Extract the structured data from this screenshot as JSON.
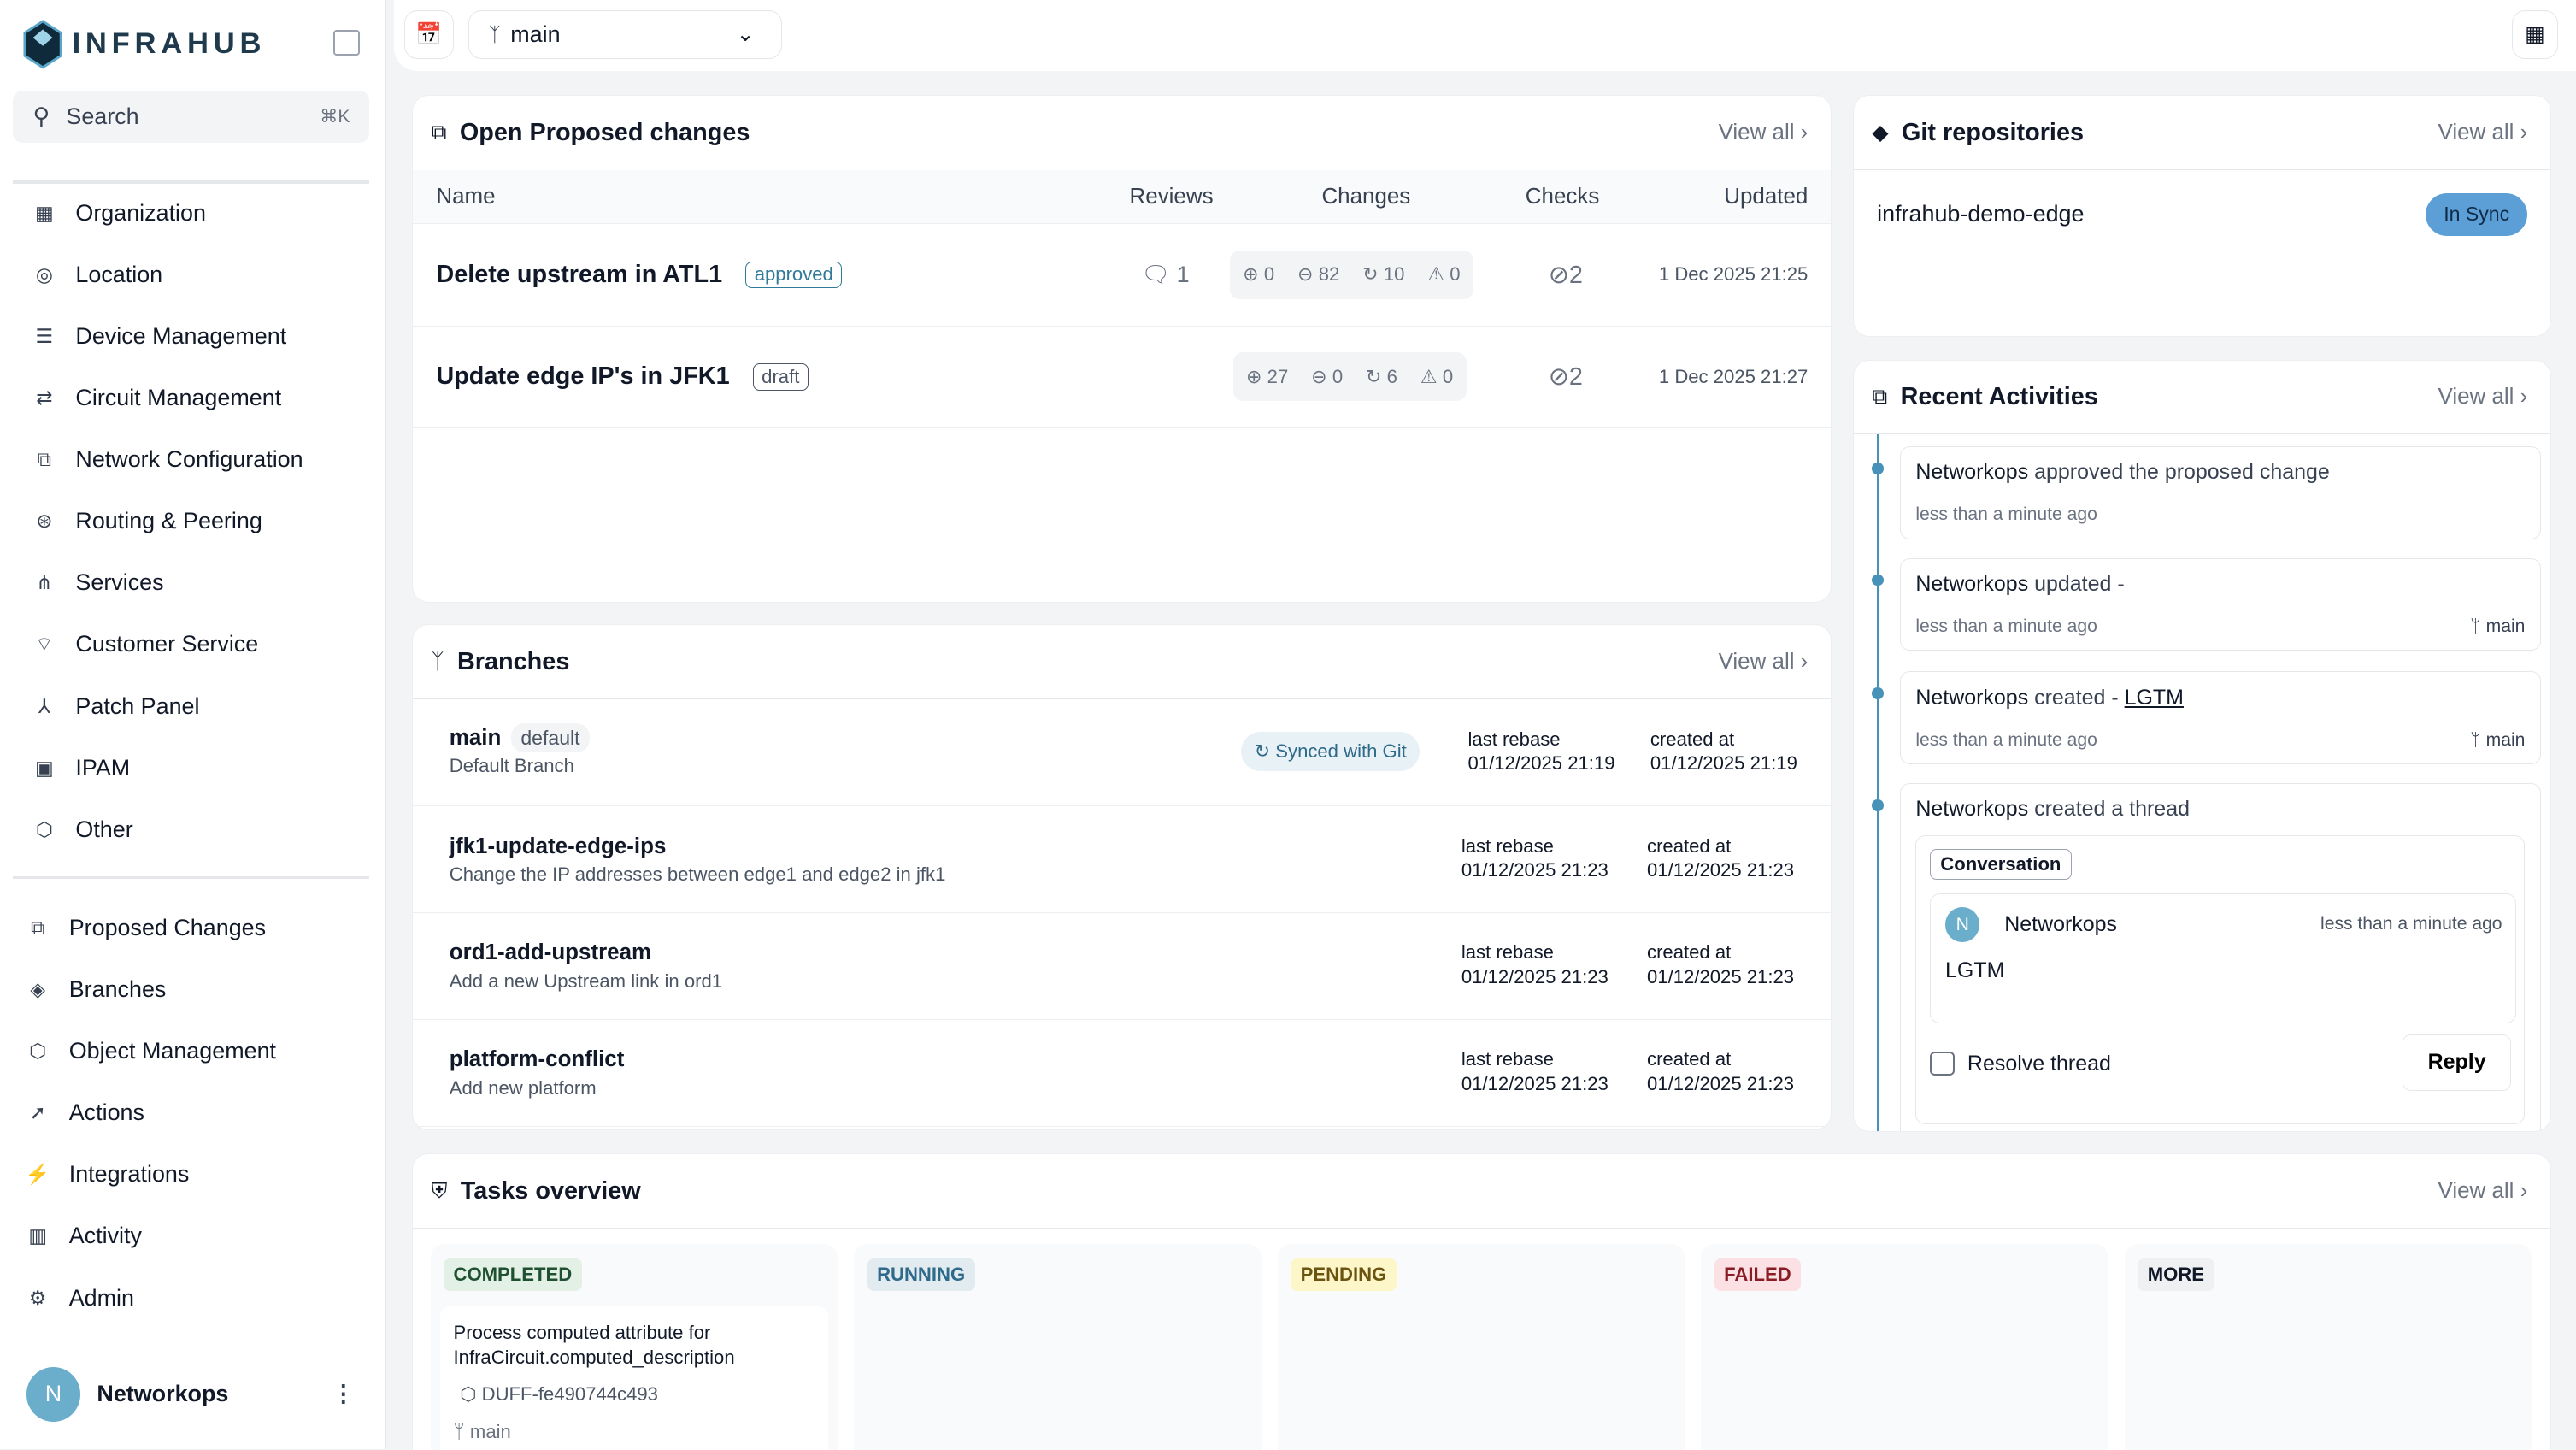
{
  "app": {
    "name": "INFRAHUB"
  },
  "search": {
    "label": "Search",
    "shortcut": "⌘K"
  },
  "nav_primary": [
    {
      "label": "Organization",
      "icon": "building-icon"
    },
    {
      "label": "Location",
      "icon": "map-pin-icon"
    },
    {
      "label": "Device Management",
      "icon": "server-icon"
    },
    {
      "label": "Circuit Management",
      "icon": "circuit-icon"
    },
    {
      "label": "Network Configuration",
      "icon": "network-icon"
    },
    {
      "label": "Routing & Peering",
      "icon": "routing-icon"
    },
    {
      "label": "Services",
      "icon": "sitemap-icon"
    },
    {
      "label": "Customer Service",
      "icon": "handshake-icon"
    },
    {
      "label": "Patch Panel",
      "icon": "patch-icon"
    },
    {
      "label": "IPAM",
      "icon": "ipam-icon"
    },
    {
      "label": "Other",
      "icon": "cube-icon"
    }
  ],
  "nav_secondary": [
    {
      "label": "Proposed Changes",
      "icon": "proposed-changes-icon"
    },
    {
      "label": "Branches",
      "icon": "layers-icon"
    },
    {
      "label": "Object Management",
      "icon": "cube-icon"
    },
    {
      "label": "Actions",
      "icon": "rocket-icon"
    },
    {
      "label": "Integrations",
      "icon": "plug-icon"
    },
    {
      "label": "Activity",
      "icon": "chart-icon"
    },
    {
      "label": "Admin",
      "icon": "gear-icon"
    }
  ],
  "user": {
    "initial": "N",
    "name": "Networkops"
  },
  "topbar": {
    "branch": "main"
  },
  "proposed_changes": {
    "title": "Open Proposed changes",
    "view_all": "View all ›",
    "columns": [
      "Name",
      "Reviews",
      "Changes",
      "Checks",
      "Updated"
    ],
    "rows": [
      {
        "name": "Delete upstream in ATL1",
        "status": "approved",
        "status_color": "#2f7a97",
        "reviews": "1",
        "added": "0",
        "removed": "82",
        "updated": "10",
        "conflicts": "0",
        "checks": "2",
        "updated_at": "1 Dec 2025 21:25"
      },
      {
        "name": "Update edge IP's in JFK1",
        "status": "draft",
        "status_color": "#4b5563",
        "reviews": "",
        "added": "27",
        "removed": "0",
        "updated": "6",
        "conflicts": "0",
        "checks": "2",
        "updated_at": "1 Dec 2025 21:27"
      }
    ]
  },
  "git": {
    "title": "Git repositories",
    "view_all": "View all ›",
    "repos": [
      {
        "name": "infrahub-demo-edge",
        "status": "In Sync"
      }
    ]
  },
  "branches": {
    "title": "Branches",
    "view_all": "View all ›",
    "default_badge": "default",
    "synced": "Synced with Git",
    "rebase_label": "last rebase",
    "created_label": "created at",
    "rows": [
      {
        "name": "main",
        "desc": "Default Branch",
        "rebase": "01/12/2025 21:19",
        "created": "01/12/2025 21:19"
      },
      {
        "name": "jfk1-update-edge-ips",
        "desc": "Change the IP addresses between edge1 and edge2 in jfk1",
        "rebase": "01/12/2025 21:23",
        "created": "01/12/2025 21:23"
      },
      {
        "name": "ord1-add-upstream",
        "desc": "Add a new Upstream link in ord1",
        "rebase": "01/12/2025 21:23",
        "created": "01/12/2025 21:23"
      },
      {
        "name": "platform-conflict",
        "desc": "Add new platform",
        "rebase": "01/12/2025 21:23",
        "created": "01/12/2025 21:23"
      }
    ]
  },
  "activities": {
    "title": "Recent Activities",
    "view_all": "View all ›",
    "items": [
      {
        "actor": "Networkops",
        "text": " approved the proposed change",
        "time": "less than a minute ago",
        "branch": ""
      },
      {
        "actor": "Networkops",
        "text": " updated -",
        "time": "less than a minute ago",
        "branch": "main"
      },
      {
        "actor": "Networkops",
        "text": " created - ",
        "link": "LGTM",
        "time": "less than a minute ago",
        "branch": "main"
      },
      {
        "actor": "Networkops",
        "text": " created a thread"
      }
    ],
    "thread": {
      "tag": "Conversation",
      "author": "Networkops",
      "time": "less than a minute ago",
      "message": "LGTM",
      "resolve": "Resolve thread",
      "reply": "Reply"
    }
  },
  "tasks": {
    "title": "Tasks overview",
    "view_all": "View all ›",
    "columns": [
      {
        "label": "COMPLETED",
        "bg": "#e3f0e6",
        "fg": "#1f5130"
      },
      {
        "label": "RUNNING",
        "bg": "#e2ebf0",
        "fg": "#2f6a8a"
      },
      {
        "label": "PENDING",
        "bg": "#fdf6c8",
        "fg": "#6b5310"
      },
      {
        "label": "FAILED",
        "bg": "#fbe1e3",
        "fg": "#8a1c25"
      },
      {
        "label": "MORE",
        "bg": "#eef0f2",
        "fg": "#111827"
      }
    ],
    "completed_task": {
      "title": "Process computed attribute for InfraCircuit.computed_description",
      "id": "DUFF-fe490744c493",
      "branch": "main"
    }
  }
}
